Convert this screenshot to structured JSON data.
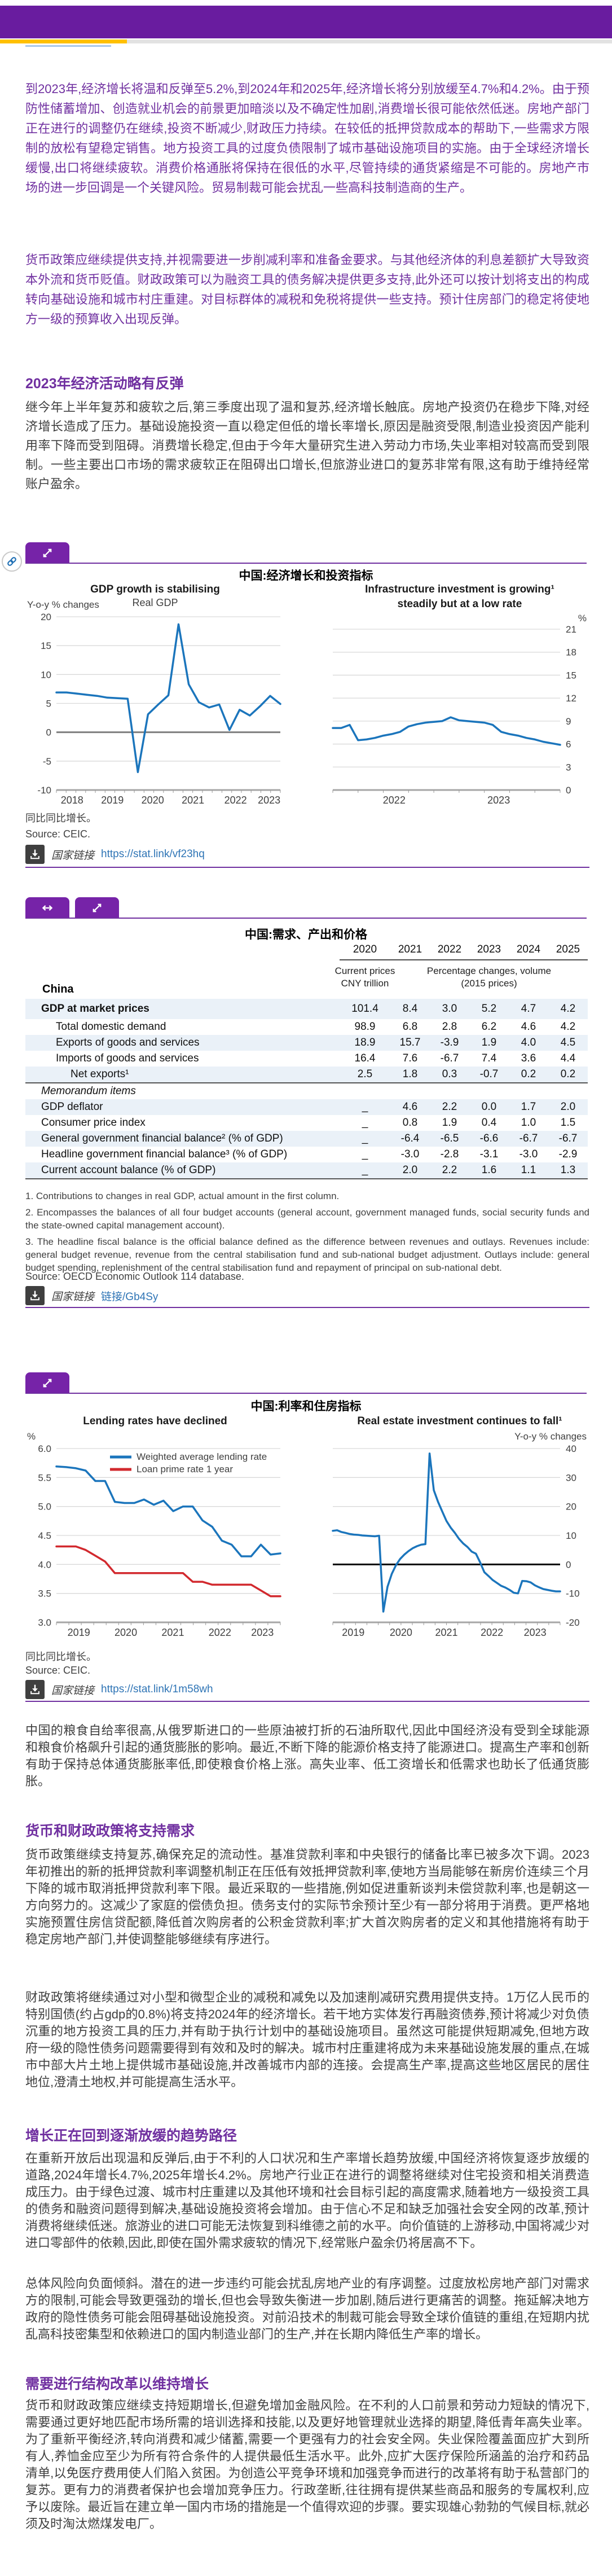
{
  "colors": {
    "bar_purple": "#691C9F",
    "button_purple": "#7623A8",
    "accent_purple": "#7030A0",
    "accent_yellow": "#FFC000",
    "accent_gray": "#E2E2E2",
    "underline_blue": "#A9C7E9",
    "link_blue": "#2E74B5",
    "chart_blue": "#1B75BC",
    "chart_red": "#D2292E",
    "stripe_blue": "#EAF1F8"
  },
  "content": {
    "p1": "到2023年,经济增长将温和反弹至5.2%,到2024年和2025年,经济增长将分别放缓至4.7%和4.2%。由于预防性储蓄增加、创造就业机会的前景更加暗淡以及不确定性加剧,消费增长很可能依然低迷。房地产部门正在进行的调整仍在继续,投资不断减少,财政压力持续。在较低的抵押贷款成本的帮助下,一些需求方限制的放松有望稳定销售。地方投资工具的过度负债限制了城市基础设施项目的实施。由于全球经济增长缓慢,出口将继续疲软。消费价格通胀将保持在很低的水平,尽管持续的通货紧缩是不可能的。房地产市场的进一步回调是一个关键风险。贸易制裁可能会扰乱一些高科技制造商的生产。",
    "p2": "货币政策应继续提供支持,并视需要进一步削减利率和准备金要求。与其他经济体的利息差额扩大导致资本外流和货币贬值。财政政策可以为融资工具的债务解决提供更多支持,此外还可以按计划将支出的构成转向基础设施和城市村庄重建。对目标群体的减税和免税将提供一些支持。预计住房部门的稳定将使地方一级的预算收入出现反弹。",
    "h1": "2023年经济活动略有反弹",
    "p3": "继今年上半年复苏和疲软之后,第三季度出现了温和复苏,经济增长触底。房地产投资仍在稳步下降,对经济增长造成了压力。基础设施投资一直以稳定但低的增长率增长,原因是融资受限,制造业投资因产能利用率下降而受到阻碍。消费增长稳定,但由于今年大量研究生进入劳动力市场,失业率相对较高而受到限制。一些主要出口市场的需求疲软正在阻碍出口增长,但旅游业进口的复苏非常有限,这有助于维持经常账户盈余。",
    "p4": "中国的粮食自给率很高,从俄罗斯进口的一些原油被打折的石油所取代,因此中国经济没有受到全球能源和粮食价格飙升引起的通货膨胀的影响。最近,不断下降的能源价格支持了能源进口。提高生产率和创新有助于保持总体通货膨胀率低,即使粮食价格上涨。高失业率、低工资增长和低需求也助长了低通货膨胀。",
    "h2": "货币和财政政策将支持需求",
    "p5": "货币政策继续支持复苏,确保充足的流动性。基准贷款利率和中央银行的储备比率已被多次下调。2023年初推出的新的抵押贷款利率调整机制正在压低有效抵押贷款利率,使地方当局能够在新房价连续三个月下降的城市取消抵押贷款利率下限。最近采取的一些措施,例如促进重新谈判未偿贷款利率,也是朝这一方向努力的。这减少了家庭的偿债负担。债务支付的实际节余预计至少有一部分将用于消费。更严格地实施预置住房信贷配额,降低首次购房者的公积金贷款利率;扩大首次购房者的定义和其他措施将有助于稳定房地产部门,并使调整能够继续有序进行。",
    "p6": "财政政策将继续通过对小型和微型企业的减税和减免以及加速削减研究费用提供支持。1万亿人民币的特别国债(约占gdp的0.8%)将支持2024年的经济增长。若干地方实体发行再融资债券,预计将减少对负债沉重的地方投资工具的压力,并有助于执行计划中的基础设施项目。虽然这可能提供短期减免,但地方政府一级的隐性债务问题需要得到有效和及时的解决。城市村庄重建将成为未来基础设施发展的重点,在城市中部大片土地上提供城市基础设施,并改善城市内部的连接。会提高生产率,提高这些地区居民的居住地位,澄清土地权,并可能提高生活水平。",
    "h3": "增长正在回到逐渐放缓的趋势路径",
    "p7": "在重新开放后出现温和反弹后,由于不利的人口状况和生产率增长趋势放缓,中国经济将恢复逐步放缓的道路,2024年增长4.7%,2025年增长4.2%。房地产行业正在进行的调整将继续对住宅投资和相关消费造成压力。由于绿色过渡、城市村庄重建以及其他环境和社会目标引起的高度需求,随着地方一级投资工具的债务和融资问题得到解决,基础设施投资将会增加。由于信心不足和缺乏加强社会安全网的改革,预计消费将继续低迷。旅游业的进口可能无法恢复到科维德之前的水平。向价值链的上游移动,中国将减少对进口零部件的依赖,因此,即使在国外需求疲软的情况下,经常账户盈余仍将居高不下。",
    "p8": "总体风险向负面倾斜。潜在的进一步违约可能会扰乱房地产业的有序调整。过度放松房地产部门对需求方的限制,可能会导致更强劲的增长,但也会导致失衡进一步加剧,随后进行更痛苦的调整。拖延解决地方政府的隐性债务可能会阻碍基础设施投资。对前沿技术的制裁可能会导致全球价值链的重组,在短期内扰乱高科技密集型和依赖进口的国内制造业部门的生产,并在长期内降低生产率的增长。",
    "h4": "需要进行结构改革以维持增长",
    "p9": "货币和财政政策应继续支持短期增长,但避免增加金融风险。在不利的人口前景和劳动力短缺的情况下,需要通过更好地匹配市场所需的培训选择和技能,以及更好地管理就业选择的期望,降低青年高失业率。为了重新平衡经济,转向消费和减少储蓄,需要一个更强有力的社会安全网。失业保险覆盖面应扩大到所有人,养恤金应至少为所有符合条件的人提供最低生活水平。此外,应扩大医疗保险所涵盖的治疗和药品清单,以免医疗费用使人们陷入贫困。为创造公平竞争环境和加强竞争而进行的改革将有助于私营部门的复苏。更有力的消费者保护也会增加竞争压力。行政垄断,往往拥有提供某些商品和服务的专属权利,应予以废除。最近旨在建立单一国内市场的措施是一个值得欢迎的步骤。要实现雄心勃勃的气候目标,就必须及时淘汰燃煤发电厂。"
  },
  "figure1": {
    "title": "中国:经济增长和投资指标",
    "note": "同比同比增长。",
    "source": "Source: CEIC.",
    "link_label": "国家链接",
    "link_url": "https://stat.link/vf23hq"
  },
  "figure2": {
    "title": "中国:利率和住房指标",
    "note": "同比同比增长。",
    "source": "Source: CEIC.",
    "link_label": "国家链接",
    "link_url": "https://stat.link/1m58wh"
  },
  "table": {
    "title": "中国:需求、产出和价格",
    "country": "China",
    "years": [
      "2020",
      "2021",
      "2022",
      "2023",
      "2024",
      "2025"
    ],
    "col1_header": [
      "Current prices",
      "CNY trillion"
    ],
    "col_rest_header": [
      "Percentage changes, volume",
      "(2015 prices)"
    ],
    "rows": [
      {
        "label": "GDP at market prices",
        "bold": true,
        "indent": 0,
        "stripe": true,
        "first": true,
        "values": [
          "101.4",
          "8.4",
          "3.0",
          "5.2",
          "4.7",
          "4.2"
        ]
      },
      {
        "label": "Total domestic demand",
        "indent": 1,
        "values": [
          "98.9",
          "6.8",
          "2.8",
          "6.2",
          "4.6",
          "4.2"
        ]
      },
      {
        "label": "Exports of goods and services",
        "indent": 1,
        "stripe": true,
        "values": [
          "18.9",
          "15.7",
          "-3.9",
          "1.9",
          "4.0",
          "4.5"
        ]
      },
      {
        "label": "Imports of goods and services",
        "indent": 1,
        "values": [
          "16.4",
          "7.6",
          "-6.7",
          "7.4",
          "3.6",
          "4.4"
        ]
      },
      {
        "label": "Net exports¹",
        "indent": 2,
        "stripe": true,
        "rule_after": true,
        "values": [
          "2.5",
          "1.8",
          "0.3",
          "-0.7",
          "0.2",
          "0.2"
        ]
      },
      {
        "label": "Memorandum items",
        "italic": true,
        "values": [
          "",
          "",
          "",
          "",
          "",
          ""
        ]
      },
      {
        "label": "GDP deflator",
        "stripe": true,
        "values": [
          "_",
          "4.6",
          "2.2",
          "0.0",
          "1.7",
          "2.0"
        ]
      },
      {
        "label": "Consumer price index",
        "values": [
          "_",
          "0.8",
          "1.9",
          "0.4",
          "1.0",
          "1.5"
        ]
      },
      {
        "label": "General government financial balance² (% of GDP)",
        "stripe": true,
        "values": [
          "_",
          "-6.4",
          "-6.5",
          "-6.6",
          "-6.7",
          "-6.7"
        ]
      },
      {
        "label": "Headline government financial balance³ (% of GDP)",
        "values": [
          "_",
          "-3.0",
          "-2.8",
          "-3.1",
          "-3.0",
          "-2.9"
        ]
      },
      {
        "label": "Current account balance (% of GDP)",
        "stripe": true,
        "values": [
          "_",
          "2.0",
          "2.2",
          "1.6",
          "1.1",
          "1.3"
        ]
      }
    ],
    "footnotes": [
      "1. Contributions to changes in real GDP, actual amount in the first column.",
      "2. Encompasses the balances of all four budget accounts (general account, government managed funds, social security funds and the state-owned capital management account).",
      "3. The headline fiscal balance is the official balance defined as the difference between revenues and outlays. Revenues include: general budget revenue, revenue from the central stabilisation fund and sub-national budget adjustment. Outlays include: general budget spending, replenishment of the central stabilisation fund and repayment of principal on sub-national debt."
    ],
    "source": "Source: OECD Economic Outlook 114 database.",
    "link_label": "国家链接",
    "link_url": "链接/Gb4Sy"
  },
  "chart_data": [
    {
      "type": "line",
      "title": "GDP growth is stabilising",
      "subtitle": "Real GDP",
      "ylabel": "Y-o-y % changes",
      "axis_side": "left",
      "ylim": [
        -10,
        20
      ],
      "yticks": [
        "-10",
        "-5",
        "0",
        "5",
        "10",
        "15",
        "20"
      ],
      "zero_line": {
        "value": 0,
        "color": "#7f7f7f",
        "width": 3
      },
      "xlabels": [
        "2018",
        "2019",
        "2020",
        "2021",
        "2022",
        "2023"
      ],
      "xlabel_pos": [
        0.07,
        0.25,
        0.43,
        0.61,
        0.8,
        0.95
      ],
      "minor_ticks": 23,
      "series": [
        {
          "name": "Real GDP",
          "color": "#1B75BC",
          "values": [
            6.9,
            6.9,
            6.7,
            6.5,
            6.3,
            6.0,
            5.9,
            5.8,
            -6.9,
            3.1,
            4.8,
            6.4,
            18.7,
            8.3,
            5.2,
            4.3,
            4.8,
            0.4,
            3.9,
            2.9,
            4.5,
            6.3,
            4.9
          ]
        }
      ]
    },
    {
      "type": "line",
      "title": "Infrastructure investment is growing¹",
      "title2": "steadily but at a low rate",
      "ylabel": "%",
      "axis_side": "right",
      "ylim": [
        0,
        21
      ],
      "yticks": [
        "0",
        "3",
        "6",
        "9",
        "12",
        "15",
        "18",
        "21"
      ],
      "xlabels": [
        "2022",
        "2023"
      ],
      "xlabel_pos": [
        0.27,
        0.73
      ],
      "minor_ticks": 9,
      "series": [
        {
          "name": "Infrastructure investment",
          "color": "#1B75BC",
          "values": [
            8.1,
            8.1,
            8.5,
            6.5,
            6.6,
            6.8,
            7.1,
            7.3,
            7.6,
            8.3,
            8.6,
            8.8,
            8.9,
            9.0,
            9.5,
            9.1,
            9.0,
            8.9,
            8.8,
            8.5,
            7.6,
            7.3,
            7.1,
            6.8,
            6.6,
            6.3,
            6.1,
            5.9
          ]
        }
      ]
    },
    {
      "type": "line",
      "title": "Lending rates have declined",
      "ylabel": "%",
      "axis_side": "left",
      "ylim": [
        3,
        6
      ],
      "yticks": [
        "3.0",
        "3.5",
        "4.0",
        "4.5",
        "5.0",
        "5.5",
        "6.0"
      ],
      "legend": true,
      "xlabels": [
        "2019",
        "2020",
        "2021",
        "2022",
        "2023"
      ],
      "xlabel_pos": [
        0.1,
        0.31,
        0.52,
        0.73,
        0.92
      ],
      "minor_ticks": 18,
      "series": [
        {
          "name": "Weighted average lending rate",
          "color": "#1B75BC",
          "values": [
            5.69,
            5.68,
            5.66,
            5.62,
            5.44,
            5.44,
            5.08,
            5.06,
            5.06,
            5.12,
            5.03,
            5.1,
            4.92,
            5.0,
            5.0,
            4.76,
            4.65,
            4.41,
            4.34,
            4.14,
            4.14,
            4.34,
            4.17,
            4.19
          ]
        },
        {
          "name": "Loan prime rate 1 year",
          "color": "#D2292E",
          "values": [
            4.31,
            4.31,
            4.31,
            4.25,
            4.15,
            4.05,
            3.85,
            3.85,
            3.85,
            3.85,
            3.85,
            3.85,
            3.85,
            3.85,
            3.7,
            3.7,
            3.65,
            3.65,
            3.65,
            3.65,
            3.65,
            3.55,
            3.45,
            3.45
          ]
        }
      ]
    },
    {
      "type": "line",
      "title": "Real estate investment continues to fall¹",
      "ylabel": "Y-o-y % changes",
      "axis_side": "right",
      "ylim": [
        -20,
        40
      ],
      "yticks": [
        "-20",
        "-10",
        "0",
        "10",
        "20",
        "30",
        "40"
      ],
      "zero_line": {
        "value": 0,
        "color": "#000000",
        "width": 3
      },
      "xlabels": [
        "2019",
        "2020",
        "2021",
        "2022",
        "2023"
      ],
      "xlabel_pos": [
        0.09,
        0.3,
        0.5,
        0.7,
        0.89
      ],
      "minor_ticks": 20,
      "series": [
        {
          "name": "Real estate investment",
          "color": "#1B75BC",
          "values": [
            11.6,
            11.8,
            11.2,
            10.9,
            10.5,
            10.3,
            10.2,
            10.0,
            9.9,
            9.8,
            9.7,
            9.9,
            -16.3,
            -7.7,
            -3.3,
            -0.3,
            1.9,
            3.4,
            4.6,
            5.6,
            6.3,
            6.8,
            7.0,
            38.3,
            25.6,
            21.6,
            18.3,
            15.0,
            12.7,
            10.9,
            8.8,
            7.2,
            6.0,
            4.4,
            3.7,
            0.7,
            -2.7,
            -4.0,
            -5.4,
            -6.4,
            -7.4,
            -8.0,
            -8.8,
            -9.8,
            -10.0,
            -5.7,
            -5.8,
            -6.2,
            -7.2,
            -7.9,
            -8.5,
            -8.8,
            -9.1,
            -9.3,
            -9.3
          ]
        }
      ]
    }
  ]
}
